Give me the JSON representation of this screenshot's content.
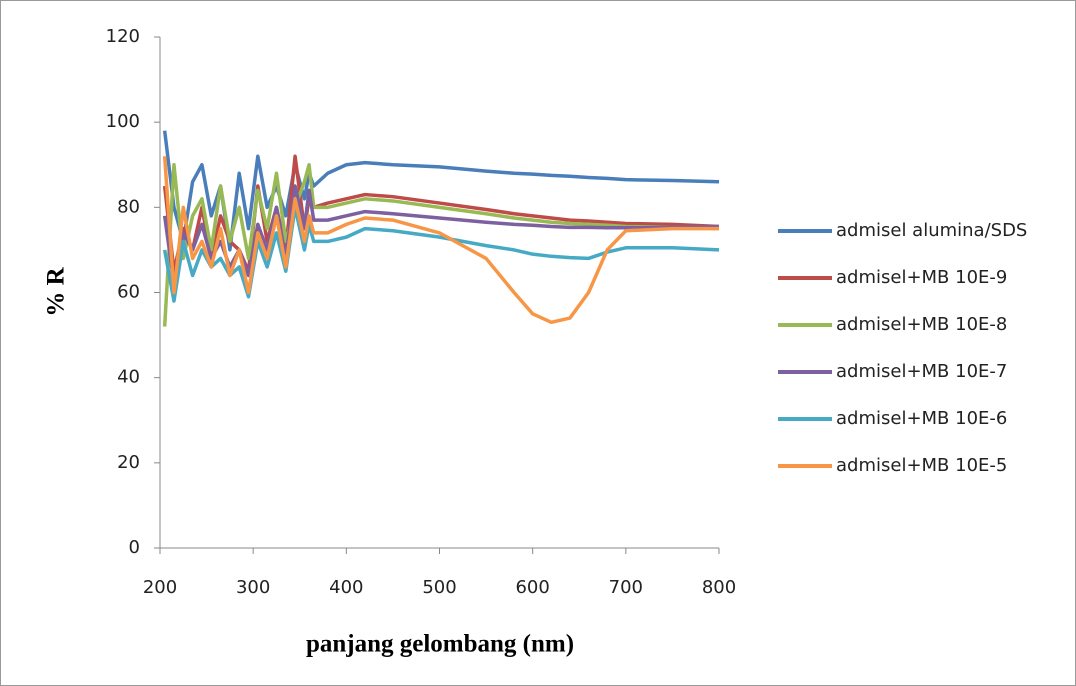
{
  "chart_data": {
    "type": "line",
    "x_label": "panjang gelombang (nm)",
    "y_label": "% R",
    "x": [
      205,
      215,
      225,
      235,
      245,
      255,
      265,
      275,
      285,
      295,
      305,
      315,
      325,
      335,
      345,
      355,
      360,
      365,
      380,
      400,
      420,
      450,
      500,
      550,
      580,
      600,
      620,
      640,
      660,
      680,
      700,
      750,
      800
    ],
    "series": [
      {
        "name": "admisel alumina/SDS",
        "color": "#4a7ebb",
        "values": [
          98,
          80,
          72,
          86,
          90,
          78,
          85,
          70,
          88,
          75,
          92,
          80,
          85,
          78,
          90,
          82,
          88,
          85,
          88,
          90,
          90.5,
          90,
          89.5,
          88.5,
          88,
          87.8,
          87.5,
          87.3,
          87,
          86.8,
          86.5,
          86.3,
          86
        ]
      },
      {
        "name": "admisel+MB 10E-9",
        "color": "#be4b48",
        "values": [
          85,
          65,
          75,
          70,
          80,
          68,
          78,
          72,
          70,
          65,
          85,
          72,
          80,
          70,
          92,
          75,
          82,
          80,
          81,
          82,
          83,
          82.5,
          81,
          79.5,
          78.5,
          78,
          77.5,
          77,
          76.8,
          76.5,
          76.2,
          76,
          75.5
        ]
      },
      {
        "name": "admisel+MB 10E-8",
        "color": "#98b954",
        "values": [
          52,
          90,
          68,
          78,
          82,
          70,
          85,
          72,
          80,
          68,
          84,
          75,
          88,
          72,
          80,
          86,
          90,
          80,
          80,
          81,
          82,
          81.5,
          80,
          78.5,
          77.5,
          77,
          76.5,
          76.2,
          76,
          75.8,
          75.5,
          75.3,
          75
        ]
      },
      {
        "name": "admisel+MB 10E-7",
        "color": "#7d60a0",
        "values": [
          78,
          62,
          74,
          70,
          76,
          68,
          72,
          66,
          70,
          64,
          76,
          70,
          80,
          68,
          85,
          75,
          84,
          77,
          77,
          78,
          79,
          78.5,
          77.5,
          76.5,
          76,
          75.8,
          75.5,
          75.3,
          75.3,
          75.2,
          75.2,
          75.3,
          75.5
        ]
      },
      {
        "name": "admisel+MB 10E-6",
        "color": "#46aac5",
        "values": [
          70,
          58,
          72,
          64,
          70,
          66,
          68,
          64,
          66,
          59,
          72,
          66,
          74,
          65,
          80,
          70,
          76,
          72,
          72,
          73,
          75,
          74.5,
          73,
          71,
          70,
          69,
          68.5,
          68.2,
          68,
          69.5,
          70.5,
          70.5,
          70
        ]
      },
      {
        "name": "admisel+MB 10E-5",
        "color": "#f79646",
        "values": [
          92,
          60,
          80,
          68,
          72,
          66,
          75,
          64,
          70,
          60,
          74,
          68,
          78,
          66,
          82,
          72,
          78,
          74,
          74,
          76,
          77.5,
          77,
          74,
          68,
          60,
          55,
          53,
          54,
          60,
          70,
          74.5,
          75,
          75
        ]
      }
    ],
    "xlim": [
      200,
      800
    ],
    "xticks": [
      200,
      300,
      400,
      500,
      600,
      700,
      800
    ],
    "ylim": [
      0,
      120
    ],
    "yticks": [
      0,
      20,
      40,
      60,
      80,
      100,
      120
    ],
    "grid": false,
    "legend": "right"
  }
}
